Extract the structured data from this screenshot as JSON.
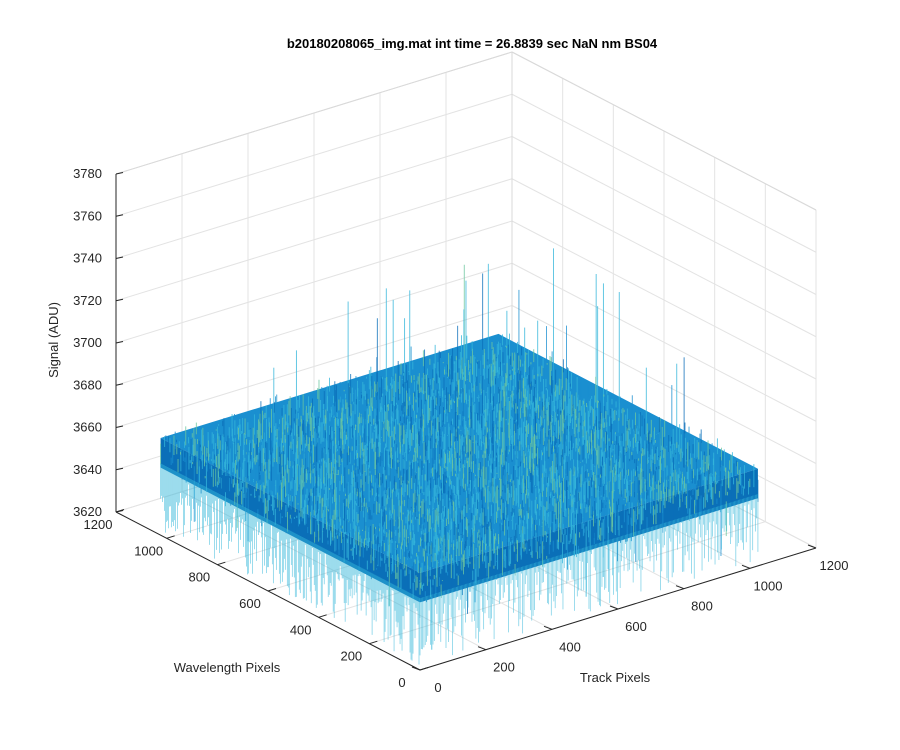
{
  "chart_data": {
    "type": "surface",
    "title": "b20180208065_img.mat int time = 26.8839 sec  NaN nm BS04",
    "xlabel": "Track Pixels",
    "ylabel": "Wavelength Pixels",
    "zlabel": "Signal (ADU)",
    "xlim": [
      0,
      1200
    ],
    "ylim": [
      0,
      1200
    ],
    "zlim": [
      3620,
      3780
    ],
    "xticks": [
      "0",
      "200",
      "400",
      "600",
      "800",
      "1000",
      "1200"
    ],
    "yticks": [
      "0",
      "200",
      "400",
      "600",
      "800",
      "1000",
      "1200"
    ],
    "zticks": [
      "3620",
      "3640",
      "3660",
      "3680",
      "3700",
      "3720",
      "3740",
      "3760",
      "3780"
    ],
    "surface": {
      "x_range": [
        0,
        1024
      ],
      "y_range": [
        0,
        1024
      ],
      "mean_signal": 3660,
      "noise_band": [
        3625,
        3740
      ],
      "colormap": "parula"
    },
    "grid": true,
    "colors": {
      "surface_main": "#1a8fd0",
      "surface_dark": "#0a6fb8",
      "surface_light": "#35b6da",
      "surface_highlight": "#6cc7a0"
    }
  }
}
